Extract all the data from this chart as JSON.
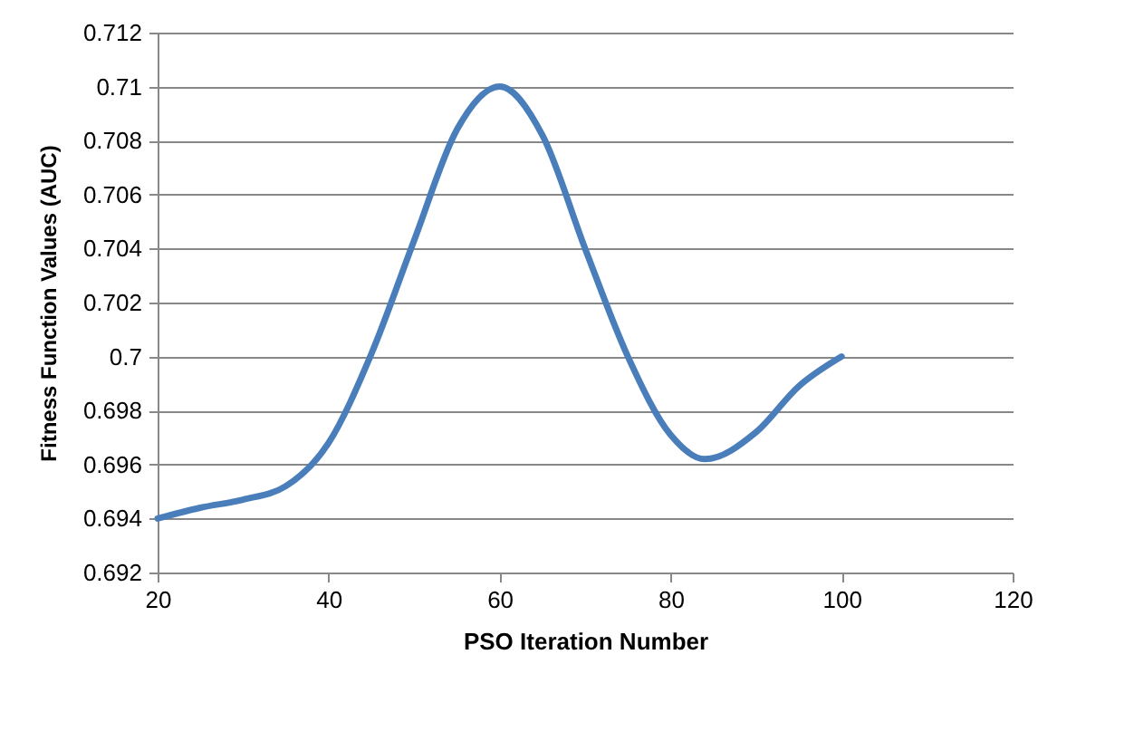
{
  "chart_data": {
    "type": "line",
    "xlabel": "PSO Iteration Number",
    "ylabel": "Fitness Function Values (AUC)",
    "x": [
      20,
      25,
      30,
      35,
      40,
      45,
      50,
      55,
      60,
      65,
      70,
      75,
      80,
      84,
      90,
      95,
      100
    ],
    "series": [
      {
        "color": "#4a7ebb",
        "values": [
          0.694,
          0.6944,
          0.6947,
          0.6952,
          0.6968,
          0.7001,
          0.7043,
          0.7084,
          0.71,
          0.7082,
          0.704,
          0.7,
          0.6971,
          0.6962,
          0.6972,
          0.6989,
          0.7
        ]
      }
    ],
    "xlim": [
      20,
      120
    ],
    "xticks": [
      20,
      40,
      60,
      80,
      100,
      120
    ],
    "ylim": [
      0.692,
      0.712
    ],
    "yticks": [
      0.692,
      0.694,
      0.696,
      0.698,
      {
        "value": 0.7,
        "label": "0.7"
      },
      0.702,
      0.704,
      0.706,
      0.708,
      {
        "value": 0.71,
        "label": "0.71"
      },
      0.712
    ],
    "grid": "y",
    "marker": "none",
    "line_style": "solid",
    "legend": false
  }
}
